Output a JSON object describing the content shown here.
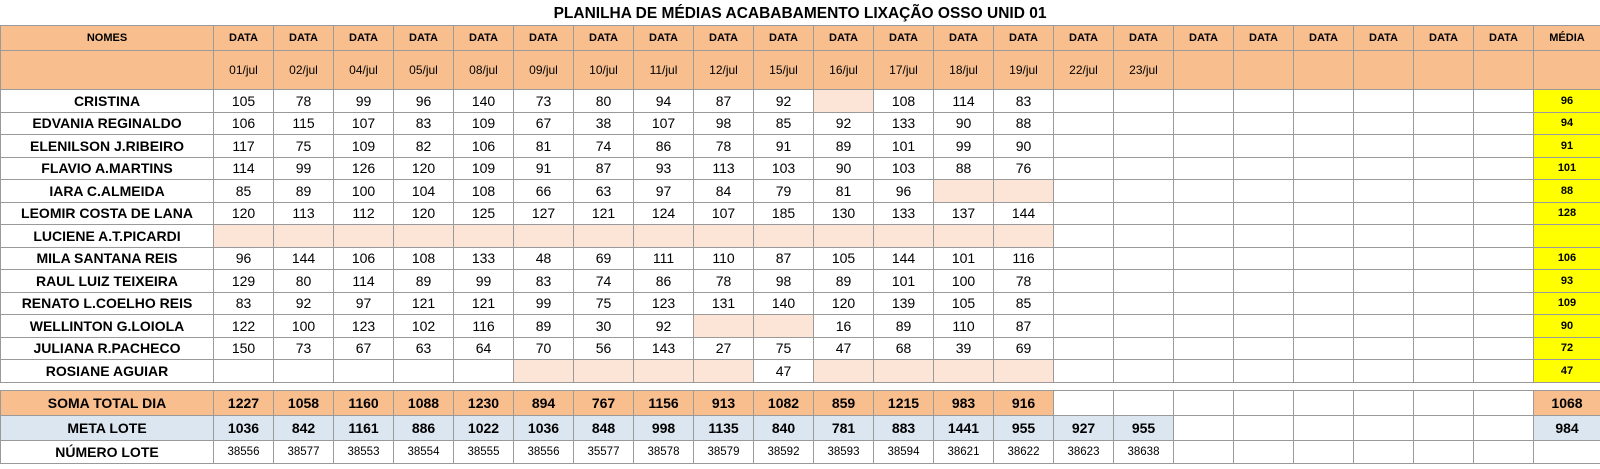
{
  "title": "PLANILHA DE MÉDIAS ACABABAMENTO LIXAÇÃO OSSO UNID 01",
  "header": {
    "names_label": "NOMES",
    "data_label": "DATA",
    "media_label": "MÉDIA",
    "dates": [
      "01/jul",
      "02/jul",
      "04/jul",
      "05/jul",
      "08/jul",
      "09/jul",
      "10/jul",
      "11/jul",
      "12/jul",
      "15/jul",
      "16/jul",
      "17/jul",
      "18/jul",
      "19/jul",
      "22/jul",
      "23/jul",
      "",
      "",
      "",
      "",
      "",
      ""
    ]
  },
  "rows": [
    {
      "name": "CRISTINA",
      "values": [
        "105",
        "78",
        "99",
        "96",
        "140",
        "73",
        "80",
        "94",
        "87",
        "92",
        "",
        "108",
        "114",
        "83"
      ],
      "shaded": [
        10
      ],
      "media": "96"
    },
    {
      "name": "EDVANIA REGINALDO",
      "values": [
        "106",
        "115",
        "107",
        "83",
        "109",
        "67",
        "38",
        "107",
        "98",
        "85",
        "92",
        "133",
        "90",
        "88"
      ],
      "shaded": [],
      "media": "94"
    },
    {
      "name": "ELENILSON J.RIBEIRO",
      "values": [
        "117",
        "75",
        "109",
        "82",
        "106",
        "81",
        "74",
        "86",
        "78",
        "91",
        "89",
        "101",
        "99",
        "90"
      ],
      "shaded": [],
      "media": "91"
    },
    {
      "name": "FLAVIO A.MARTINS",
      "values": [
        "114",
        "99",
        "126",
        "120",
        "109",
        "91",
        "87",
        "93",
        "113",
        "103",
        "90",
        "103",
        "88",
        "76"
      ],
      "shaded": [],
      "media": "101"
    },
    {
      "name": "IARA C.ALMEIDA",
      "values": [
        "85",
        "89",
        "100",
        "104",
        "108",
        "66",
        "63",
        "97",
        "84",
        "79",
        "81",
        "96",
        "",
        ""
      ],
      "shaded": [
        12,
        13
      ],
      "media": "88"
    },
    {
      "name": "LEOMIR COSTA DE LANA",
      "values": [
        "120",
        "113",
        "112",
        "120",
        "125",
        "127",
        "121",
        "124",
        "107",
        "185",
        "130",
        "133",
        "137",
        "144"
      ],
      "shaded": [],
      "media": "128"
    },
    {
      "name": "LUCIENE A.T.PICARDI",
      "values": [
        "",
        "",
        "",
        "",
        "",
        "",
        "",
        "",
        "",
        "",
        "",
        "",
        "",
        ""
      ],
      "shaded": [
        0,
        1,
        2,
        3,
        4,
        5,
        6,
        7,
        8,
        9,
        10,
        11,
        12,
        13
      ],
      "media": ""
    },
    {
      "name": "MILA SANTANA REIS",
      "values": [
        "96",
        "144",
        "106",
        "108",
        "133",
        "48",
        "69",
        "111",
        "110",
        "87",
        "105",
        "144",
        "101",
        "116"
      ],
      "shaded": [],
      "media": "106"
    },
    {
      "name": "RAUL LUIZ TEIXEIRA",
      "values": [
        "129",
        "80",
        "114",
        "89",
        "99",
        "83",
        "74",
        "86",
        "78",
        "98",
        "89",
        "101",
        "100",
        "78"
      ],
      "shaded": [],
      "media": "93"
    },
    {
      "name": "RENATO L.COELHO REIS",
      "values": [
        "83",
        "92",
        "97",
        "121",
        "121",
        "99",
        "75",
        "123",
        "131",
        "140",
        "120",
        "139",
        "105",
        "85"
      ],
      "shaded": [],
      "media": "109"
    },
    {
      "name": "WELLINTON G.LOIOLA",
      "values": [
        "122",
        "100",
        "123",
        "102",
        "116",
        "89",
        "30",
        "92",
        "",
        "",
        "16",
        "89",
        "110",
        "87"
      ],
      "shaded": [
        8,
        9
      ],
      "media": "90"
    },
    {
      "name": "JULIANA R.PACHECO",
      "values": [
        "150",
        "73",
        "67",
        "63",
        "64",
        "70",
        "56",
        "143",
        "27",
        "75",
        "47",
        "68",
        "39",
        "69"
      ],
      "shaded": [],
      "media": "72"
    },
    {
      "name": "ROSIANE AGUIAR",
      "values": [
        "",
        "",
        "",
        "",
        "",
        "",
        "",
        "",
        "",
        "47",
        "",
        "",
        "",
        ""
      ],
      "shaded": [
        5,
        6,
        7,
        8,
        10,
        11,
        12,
        13
      ],
      "media": "47"
    }
  ],
  "soma": {
    "label": "SOMA TOTAL DIA",
    "values": [
      "1227",
      "1058",
      "1160",
      "1088",
      "1230",
      "894",
      "767",
      "1156",
      "913",
      "1082",
      "859",
      "1215",
      "983",
      "916"
    ],
    "total": "1068"
  },
  "meta": {
    "label": "META LOTE",
    "values": [
      "1036",
      "842",
      "1161",
      "886",
      "1022",
      "1036",
      "848",
      "998",
      "1135",
      "840",
      "781",
      "883",
      "1441",
      "955",
      "927",
      "955"
    ],
    "total": "984"
  },
  "numero": {
    "label": "NÚMERO LOTE",
    "values": [
      "38556",
      "38577",
      "38553",
      "38554",
      "38555",
      "38556",
      "35577",
      "38578",
      "38579",
      "38592",
      "38593",
      "38594",
      "38621",
      "38622",
      "38623",
      "38638"
    ]
  },
  "colors": {
    "header_orange": "#f8be8e",
    "shade_light": "#fce4d6",
    "meta_blue": "#dce6f1",
    "media_yellow": "#ffff00"
  }
}
